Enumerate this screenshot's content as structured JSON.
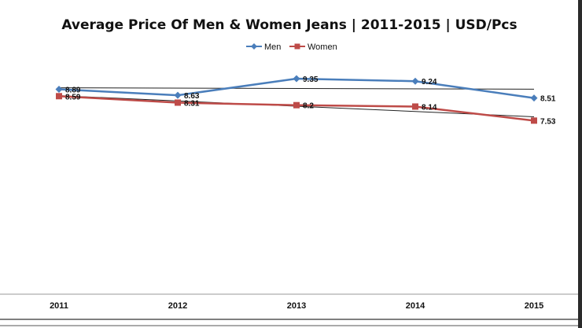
{
  "chart_data": {
    "type": "line",
    "title": "Average Price Of Men & Women Jeans | 2011-2015 | USD/Pcs",
    "categories": [
      "2011",
      "2012",
      "2013",
      "2014",
      "2015"
    ],
    "series": [
      {
        "name": "Men",
        "values": [
          8.89,
          8.63,
          9.35,
          9.24,
          8.51
        ],
        "color": "#4a7ebb",
        "marker": "diamond",
        "labels": [
          "8.89",
          "8.63",
          "9.35",
          "9.24",
          "8.51"
        ]
      },
      {
        "name": "Women",
        "values": [
          8.59,
          8.31,
          8.2,
          8.14,
          7.53
        ],
        "color": "#be4b48",
        "marker": "square",
        "labels": [
          "8.59",
          "8.31",
          "8.2",
          "8.14",
          "7.53"
        ]
      }
    ],
    "trendlines": true,
    "legend_position": "top",
    "grid": false,
    "ylim": [
      0,
      9.9
    ]
  }
}
